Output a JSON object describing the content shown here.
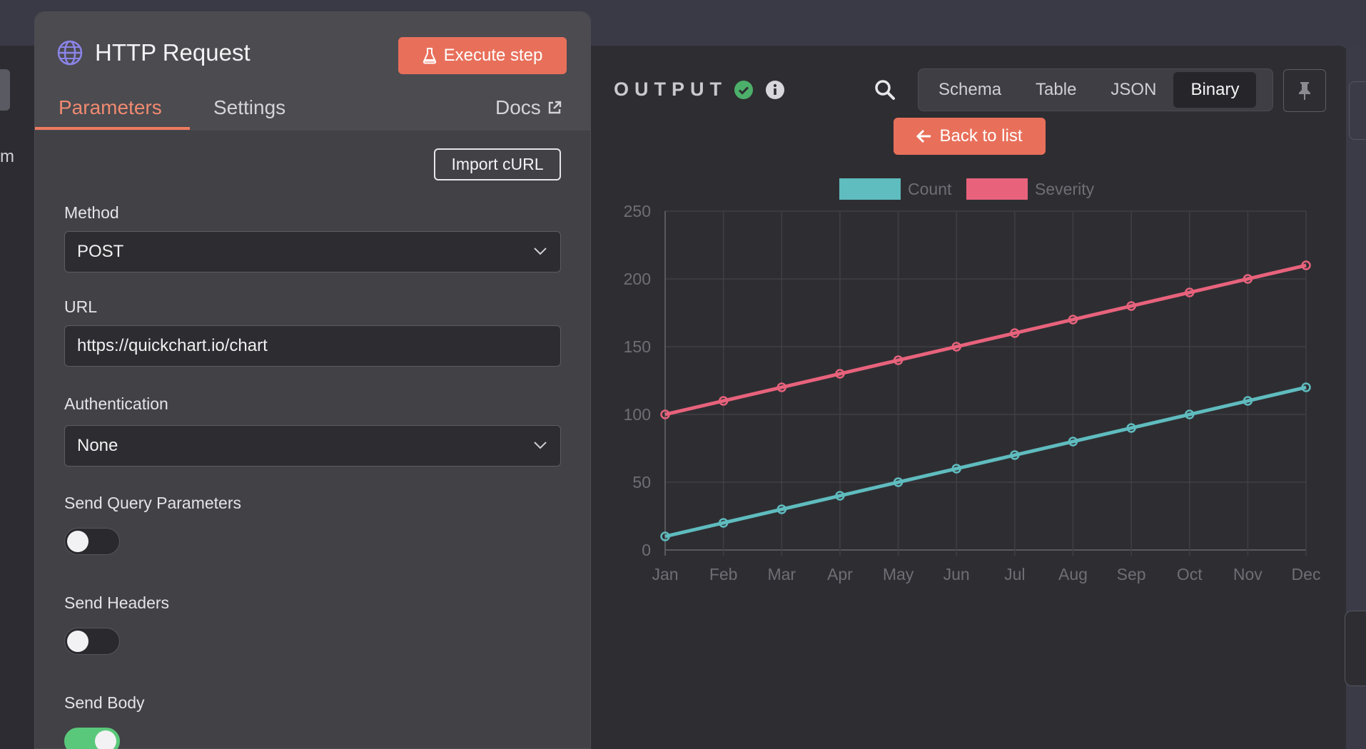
{
  "background": {
    "partial_left_text": "m"
  },
  "node_panel": {
    "title": "HTTP Request",
    "title_icon": "globe-icon",
    "execute_label": "Execute step",
    "execute_icon": "flask-icon",
    "tabs": [
      {
        "label": "Parameters",
        "active": true
      },
      {
        "label": "Settings",
        "active": false
      }
    ],
    "docs_label": "Docs",
    "docs_icon": "external-link-icon",
    "import_curl_label": "Import cURL",
    "method": {
      "label": "Method",
      "value": "POST"
    },
    "url": {
      "label": "URL",
      "value": "https://quickchart.io/chart"
    },
    "authentication": {
      "label": "Authentication",
      "value": "None"
    },
    "send_query": {
      "label": "Send Query Parameters",
      "on": false
    },
    "send_headers": {
      "label": "Send Headers",
      "on": false
    },
    "send_body": {
      "label": "Send Body",
      "on": true
    }
  },
  "output_panel": {
    "title": "OUTPUT",
    "status_icon": "check-circle-icon",
    "info_icon": "info-icon",
    "search_icon": "search-icon",
    "view_tabs": [
      "Schema",
      "Table",
      "JSON",
      "Binary"
    ],
    "active_view": "Binary",
    "pin_icon": "pin-icon",
    "back_label": "Back to list",
    "back_icon": "arrow-left-icon"
  },
  "colors": {
    "accent": "#e8705b",
    "count_series": "#5fbcbf",
    "severity_series": "#e8627c",
    "toggle_on": "#5ac87a"
  },
  "chart_data": {
    "type": "line",
    "categories": [
      "Jan",
      "Feb",
      "Mar",
      "Apr",
      "May",
      "Jun",
      "Jul",
      "Aug",
      "Sep",
      "Oct",
      "Nov",
      "Dec"
    ],
    "series": [
      {
        "name": "Count",
        "values": [
          10,
          20,
          30,
          40,
          50,
          60,
          70,
          80,
          90,
          100,
          110,
          120
        ],
        "color": "#5fbcbf"
      },
      {
        "name": "Severity",
        "values": [
          100,
          110,
          120,
          130,
          140,
          150,
          160,
          170,
          180,
          190,
          200,
          210
        ],
        "color": "#e8627c"
      }
    ],
    "ylim": [
      0,
      250
    ],
    "yticks": [
      0,
      50,
      100,
      150,
      200,
      250
    ],
    "grid": true,
    "legend": "top-center"
  }
}
